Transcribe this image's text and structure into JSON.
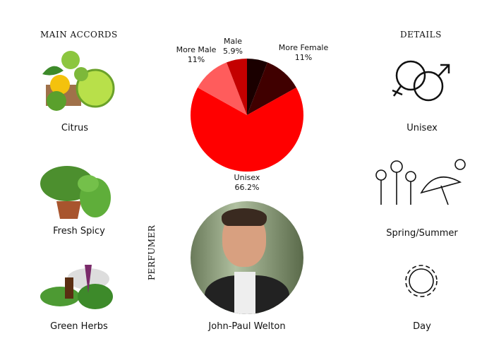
{
  "main_accords": {
    "title": "MAIN ACCORDS",
    "items": [
      {
        "label": "Citrus",
        "icon": "citrus-fruits-image"
      },
      {
        "label": "Fresh Spicy",
        "icon": "mint-plant-image"
      },
      {
        "label": "Green Herbs",
        "icon": "herbs-image"
      }
    ]
  },
  "details": {
    "title": "DETAILS",
    "items": [
      {
        "label": "Unisex",
        "icon": "gender-symbols-icon"
      },
      {
        "label": "Spring/Summer",
        "icon": "flowers-umbrella-sun-icon"
      },
      {
        "label": "Day",
        "icon": "sun-icon"
      }
    ]
  },
  "perfumer": {
    "title": "PERFUMER",
    "name": "John-Paul Welton"
  },
  "chart_data": {
    "type": "pie",
    "slices": [
      {
        "name": "",
        "value": 5.9,
        "label": "",
        "color": "#1a0000"
      },
      {
        "name": "More Female",
        "value": 11,
        "label": "11%",
        "color": "#400000"
      },
      {
        "name": "Unisex",
        "value": 66.2,
        "label": "66.2%",
        "color": "#ff0000"
      },
      {
        "name": "More Male",
        "value": 11,
        "label": "11%",
        "color": "#ff5c5c"
      },
      {
        "name": "Male",
        "value": 5.9,
        "label": "5.9%",
        "color": "#c40000"
      }
    ]
  }
}
